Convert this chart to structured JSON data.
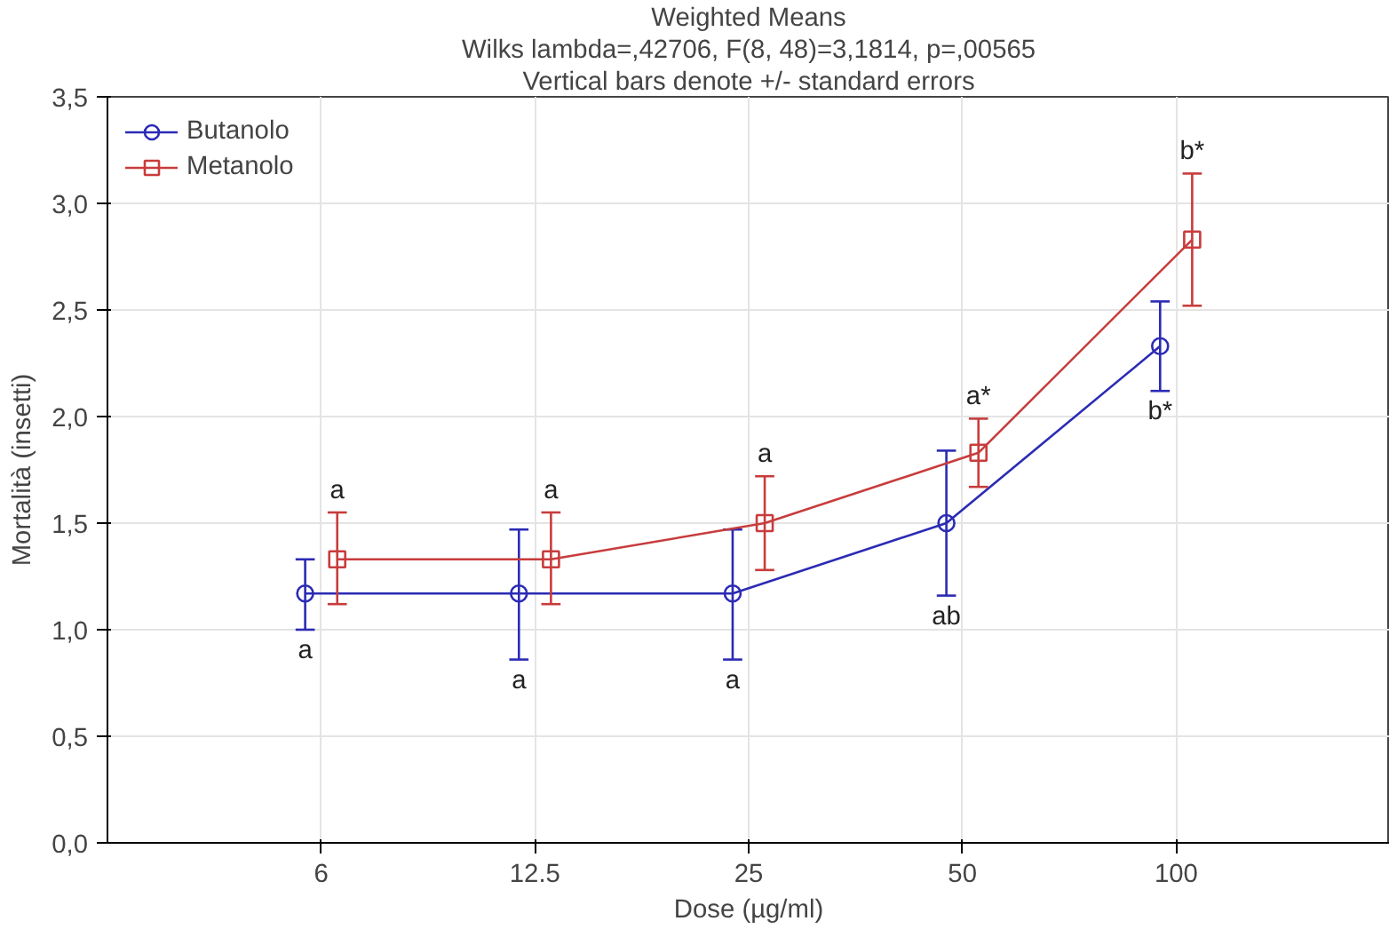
{
  "chart_data": {
    "type": "line",
    "title": "Weighted Means",
    "subtitle": "Wilks lambda=,42706, F(8, 48)=3,1814, p=,00565",
    "xlabel": "Dose (µg/ml)",
    "ylabel": "Mortalità (insetti)",
    "categories": [
      "6",
      "12.5",
      "25",
      "50",
      "100"
    ],
    "series": [
      {
        "name": "Butanolo",
        "color": "#2b2bb5",
        "marker": "circle",
        "values": [
          1.17,
          1.17,
          1.17,
          1.5,
          2.33
        ],
        "errors": [
          [
            1.0,
            1.33
          ],
          [
            0.86,
            1.47
          ],
          [
            0.86,
            1.47
          ],
          [
            1.16,
            1.84
          ],
          [
            2.12,
            2.54
          ]
        ]
      },
      {
        "name": "Metanolo",
        "color": "#c83c3c",
        "marker": "square",
        "values": [
          1.33,
          1.33,
          1.5,
          1.83,
          2.83
        ],
        "errors": [
          [
            1.12,
            1.55
          ],
          [
            1.12,
            1.55
          ],
          [
            1.28,
            1.72
          ],
          [
            1.67,
            1.99
          ],
          [
            2.52,
            3.14
          ]
        ]
      }
    ],
    "ylim": [
      0,
      3.5
    ],
    "yticks": [
      {
        "value": 0,
        "label": "0,0"
      },
      {
        "value": 0.5,
        "label": "0,5"
      },
      {
        "value": 1,
        "label": "1,0"
      },
      {
        "value": 1.5,
        "label": "1,5"
      },
      {
        "value": 2,
        "label": "2,0"
      },
      {
        "value": 2.5,
        "label": "2,5"
      },
      {
        "value": 3,
        "label": "3,0"
      },
      {
        "value": 3.5,
        "label": "3,5"
      }
    ],
    "annotations": [
      "Vertical bars denote +/- standard errors",
      {
        "text": "a",
        "x": "6",
        "y": 1.17
      },
      {
        "text": "a",
        "x": "12.5",
        "y": 1.17
      },
      {
        "text": "a",
        "x": "25",
        "y": 1.17
      },
      {
        "text": "ab",
        "x": "50",
        "y": 1.16
      },
      {
        "text": "b*",
        "x": "100",
        "y": 2.33
      },
      {
        "text": "a",
        "x": "6",
        "y": 1.33
      },
      {
        "text": "a",
        "x": "12.5",
        "y": 1.33
      },
      {
        "text": "a",
        "x": "25",
        "y": 1.5
      },
      {
        "text": "a*",
        "x": "50",
        "y": 1.83
      },
      {
        "text": "b*",
        "x": "100",
        "y": 2.83
      }
    ],
    "grid": true,
    "legend": "top left",
    "line_style": "solid"
  }
}
